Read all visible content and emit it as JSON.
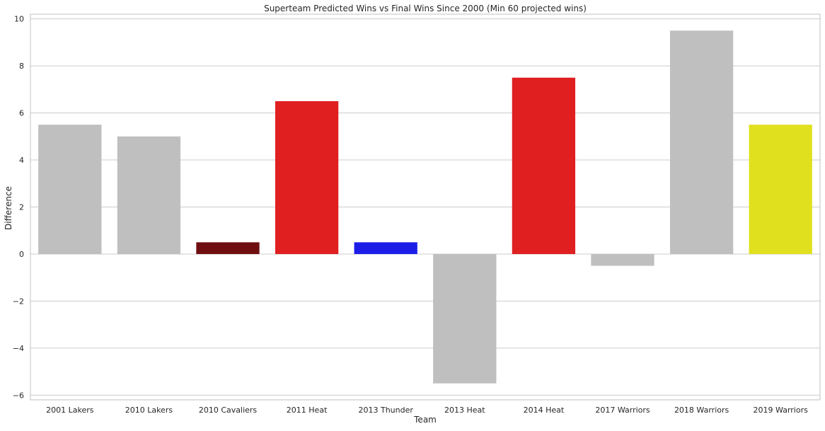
{
  "chart_data": {
    "type": "bar",
    "title": "Superteam Predicted Wins vs Final Wins Since 2000 (Min 60 projected wins)",
    "xlabel": "Team",
    "ylabel": "Difference",
    "categories": [
      "2001 Lakers",
      "2010 Lakers",
      "2010 Cavaliers",
      "2011 Heat",
      "2013 Thunder",
      "2013 Heat",
      "2014 Heat",
      "2017 Warriors",
      "2018 Warriors",
      "2019 Warriors"
    ],
    "values": [
      5.5,
      5,
      0.5,
      6.5,
      0.5,
      -5.5,
      7.5,
      -0.5,
      9.5,
      5.5
    ],
    "bar_colors": [
      "#bfbfbf",
      "#bfbfbf",
      "#6f0e10",
      "#e01f20",
      "#1d1de8",
      "#bfbfbf",
      "#e01f20",
      "#bfbfbf",
      "#bfbfbf",
      "#e0e01f"
    ],
    "ylim": [
      -6.2,
      10.2
    ],
    "yticks": [
      -6,
      -4,
      -2,
      0,
      2,
      4,
      6,
      8,
      10
    ],
    "ytick_labels": [
      "−6",
      "−4",
      "−2",
      "0",
      "2",
      "4",
      "6",
      "8",
      "10"
    ],
    "grid": true,
    "style": {
      "grid_color": "#cccccc",
      "spine_color": "#cccccc",
      "background": "#ffffff"
    }
  }
}
